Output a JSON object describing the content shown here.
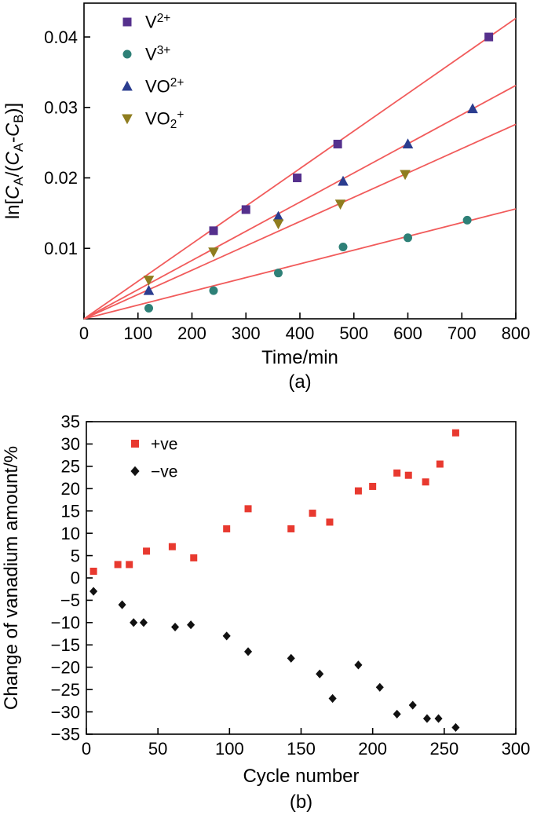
{
  "figure": {
    "background": "#ffffff",
    "axis_color": "#000000"
  },
  "chart_data": [
    {
      "id": "panel_a",
      "type": "scatter",
      "xlabel": "Time/min",
      "panel_label": "(a)",
      "ylabel_tokens": [
        {
          "t": "n",
          "v": "ln["
        },
        {
          "t": "i",
          "v": "C"
        },
        {
          "t": "sub",
          "v": "A"
        },
        {
          "t": "n",
          "v": "/("
        },
        {
          "t": "i",
          "v": "C"
        },
        {
          "t": "sub",
          "v": "A"
        },
        {
          "t": "n",
          "v": "-"
        },
        {
          "t": "i",
          "v": "C"
        },
        {
          "t": "sub",
          "v": "B"
        },
        {
          "t": "n",
          "v": ")]"
        }
      ],
      "xlim": [
        0,
        800
      ],
      "ylim": [
        0,
        0.0448
      ],
      "xticks": [
        {
          "v": 0,
          "label": "0"
        },
        {
          "v": 100,
          "label": "100"
        },
        {
          "v": 200,
          "label": "200"
        },
        {
          "v": 300,
          "label": "300"
        },
        {
          "v": 400,
          "label": "400"
        },
        {
          "v": 500,
          "label": "500"
        },
        {
          "v": 600,
          "label": "600"
        },
        {
          "v": 700,
          "label": "700"
        },
        {
          "v": 800,
          "label": "800"
        }
      ],
      "yticks": [
        {
          "v": 0.01,
          "label": "0.01"
        },
        {
          "v": 0.02,
          "label": "0.02"
        },
        {
          "v": 0.03,
          "label": "0.03"
        },
        {
          "v": 0.04,
          "label": "0.04"
        }
      ],
      "fit_line_color": "#f15b5b",
      "legend_position": "top-left",
      "grid": false,
      "series": [
        {
          "name_tokens": [
            {
              "t": "n",
              "v": "V"
            },
            {
              "t": "sup",
              "v": "2+"
            }
          ],
          "marker": "square",
          "color": "#55308d",
          "fit_slope": 5.33e-05,
          "points": [
            [
              240,
              0.0125
            ],
            [
              300,
              0.0155
            ],
            [
              395,
              0.02
            ],
            [
              470,
              0.0248
            ],
            [
              750,
              0.04
            ]
          ]
        },
        {
          "name_tokens": [
            {
              "t": "n",
              "v": "V"
            },
            {
              "t": "sup",
              "v": "3+"
            }
          ],
          "marker": "circle",
          "color": "#2e8077",
          "fit_slope": 1.95e-05,
          "points": [
            [
              120,
              0.0015
            ],
            [
              240,
              0.004
            ],
            [
              360,
              0.0065
            ],
            [
              480,
              0.0102
            ],
            [
              600,
              0.0115
            ],
            [
              710,
              0.014
            ]
          ]
        },
        {
          "name_tokens": [
            {
              "t": "n",
              "v": "VO"
            },
            {
              "t": "sup",
              "v": "2+"
            }
          ],
          "marker": "triangle-up",
          "color": "#2b3d8f",
          "fit_slope": 4.14e-05,
          "points": [
            [
              120,
              0.004
            ],
            [
              360,
              0.0145
            ],
            [
              480,
              0.0195
            ],
            [
              600,
              0.0248
            ],
            [
              720,
              0.0298
            ]
          ]
        },
        {
          "name_tokens": [
            {
              "t": "n",
              "v": "VO"
            },
            {
              "t": "sub",
              "v": "2"
            },
            {
              "t": "sup",
              "v": "+"
            }
          ],
          "marker": "triangle-down",
          "color": "#8f7d1f",
          "fit_slope": 3.45e-05,
          "points": [
            [
              120,
              0.0055
            ],
            [
              240,
              0.0095
            ],
            [
              360,
              0.0135
            ],
            [
              475,
              0.0163
            ],
            [
              595,
              0.0205
            ]
          ]
        }
      ]
    },
    {
      "id": "panel_b",
      "type": "scatter",
      "xlabel": "Cycle number",
      "panel_label": "(b)",
      "ylabel_tokens": [
        {
          "t": "n",
          "v": "Change of vanadium amount/%"
        }
      ],
      "xlim": [
        0,
        300
      ],
      "ylim": [
        -35,
        35
      ],
      "xticks": [
        {
          "v": 0,
          "label": "0"
        },
        {
          "v": 50,
          "label": "50"
        },
        {
          "v": 100,
          "label": "100"
        },
        {
          "v": 150,
          "label": "150"
        },
        {
          "v": 200,
          "label": "200"
        },
        {
          "v": 250,
          "label": "250"
        },
        {
          "v": 300,
          "label": "300"
        }
      ],
      "yticks": [
        {
          "v": 35,
          "label": "35"
        },
        {
          "v": 30,
          "label": "30"
        },
        {
          "v": 25,
          "label": "25"
        },
        {
          "v": 20,
          "label": "20"
        },
        {
          "v": 15,
          "label": "15"
        },
        {
          "v": 10,
          "label": "10"
        },
        {
          "v": 5,
          "label": "5"
        },
        {
          "v": 0,
          "label": "0"
        },
        {
          "v": -5,
          "label": "−5"
        },
        {
          "v": -10,
          "label": "−10"
        },
        {
          "v": -15,
          "label": "−15"
        },
        {
          "v": -20,
          "label": "−20"
        },
        {
          "v": -25,
          "label": "−25"
        },
        {
          "v": -30,
          "label": "−30"
        },
        {
          "v": -35,
          "label": "−35"
        }
      ],
      "legend_position": "top-left",
      "grid": false,
      "series": [
        {
          "name_tokens": [
            {
              "t": "n",
              "v": "+ve"
            }
          ],
          "marker": "square",
          "color": "#e8392f",
          "points": [
            [
              5,
              1.5
            ],
            [
              22,
              3
            ],
            [
              30,
              3
            ],
            [
              42,
              6
            ],
            [
              60,
              7
            ],
            [
              75,
              4.5
            ],
            [
              98,
              11
            ],
            [
              113,
              15.5
            ],
            [
              143,
              11
            ],
            [
              158,
              14.5
            ],
            [
              170,
              12.5
            ],
            [
              190,
              19.5
            ],
            [
              200,
              20.5
            ],
            [
              217,
              23.5
            ],
            [
              225,
              23
            ],
            [
              237,
              21.5
            ],
            [
              247,
              25.5
            ],
            [
              258,
              32.5
            ]
          ]
        },
        {
          "name_tokens": [
            {
              "t": "n",
              "v": "−ve"
            }
          ],
          "marker": "diamond",
          "color": "#111111",
          "points": [
            [
              5,
              -3
            ],
            [
              25,
              -6
            ],
            [
              33,
              -10
            ],
            [
              40,
              -10
            ],
            [
              62,
              -11
            ],
            [
              73,
              -10.5
            ],
            [
              98,
              -13
            ],
            [
              113,
              -16.5
            ],
            [
              143,
              -18
            ],
            [
              163,
              -21.5
            ],
            [
              172,
              -27
            ],
            [
              190,
              -19.5
            ],
            [
              205,
              -24.5
            ],
            [
              217,
              -30.5
            ],
            [
              228,
              -28.5
            ],
            [
              238,
              -31.5
            ],
            [
              246,
              -31.5
            ],
            [
              258,
              -33.5
            ]
          ]
        }
      ]
    }
  ]
}
